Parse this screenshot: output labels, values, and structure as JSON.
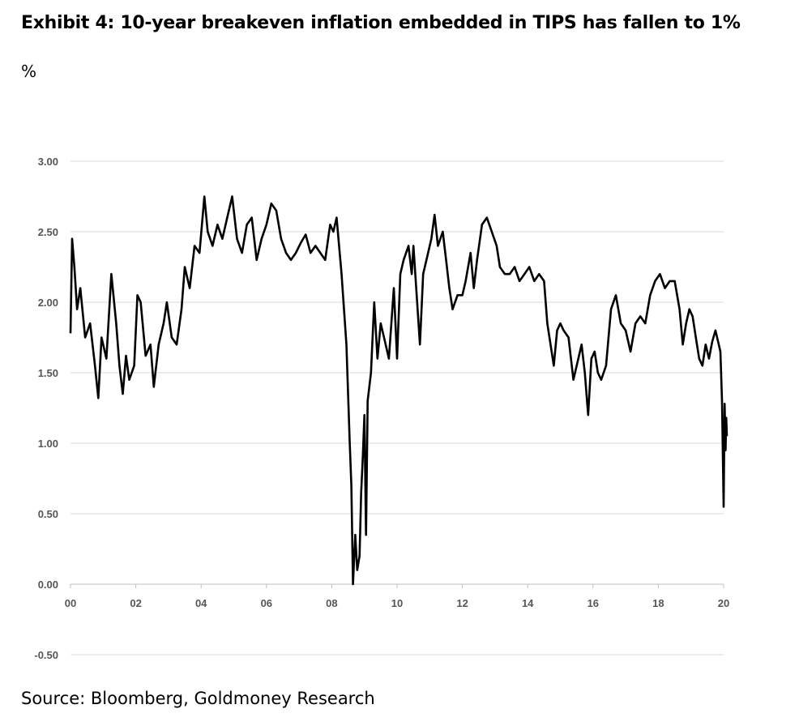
{
  "title": "Exhibit 4: 10-year breakeven inflation embedded in TIPS has fallen to 1%",
  "unit_label": "%",
  "source": "Source: Bloomberg, Goldmoney Research",
  "chart_data": {
    "type": "line",
    "title": "Exhibit 4: 10-year breakeven inflation embedded in TIPS has fallen to 1%",
    "ylabel": "%",
    "xlabel": "",
    "xlim": [
      2000,
      2020
    ],
    "ylim": [
      -0.5,
      3.0
    ],
    "grid": "horizontal",
    "legend": "none",
    "line_color": "#000000",
    "x_ticks": [
      {
        "value": 2000,
        "label": "00"
      },
      {
        "value": 2002,
        "label": "02"
      },
      {
        "value": 2004,
        "label": "04"
      },
      {
        "value": 2006,
        "label": "06"
      },
      {
        "value": 2008,
        "label": "08"
      },
      {
        "value": 2010,
        "label": "10"
      },
      {
        "value": 2012,
        "label": "12"
      },
      {
        "value": 2014,
        "label": "14"
      },
      {
        "value": 2016,
        "label": "16"
      },
      {
        "value": 2018,
        "label": "18"
      },
      {
        "value": 2020,
        "label": "20"
      }
    ],
    "y_ticks": [
      {
        "value": 3.0,
        "label": "3.00"
      },
      {
        "value": 2.5,
        "label": "2.50"
      },
      {
        "value": 2.0,
        "label": "2.00"
      },
      {
        "value": 1.5,
        "label": "1.50"
      },
      {
        "value": 1.0,
        "label": "1.00"
      },
      {
        "value": 0.5,
        "label": "0.50"
      },
      {
        "value": 0.0,
        "label": "0.00"
      },
      {
        "value": -0.5,
        "label": "-0.50"
      }
    ],
    "series": [
      {
        "x": [
          2000.0,
          2000.05,
          2000.12,
          2000.2,
          2000.3,
          2000.45,
          2000.6,
          2000.75,
          2000.85,
          2000.95,
          2001.1,
          2001.25,
          2001.4,
          2001.5,
          2001.6,
          2001.7,
          2001.8,
          2001.95,
          2002.05,
          2002.15,
          2002.3,
          2002.45,
          2002.55,
          2002.7,
          2002.85,
          2002.95,
          2003.1,
          2003.25,
          2003.4,
          2003.5,
          2003.65,
          2003.8,
          2003.95,
          2004.1,
          2004.2,
          2004.35,
          2004.5,
          2004.65,
          2004.8,
          2004.95,
          2005.1,
          2005.25,
          2005.4,
          2005.55,
          2005.7,
          2005.85,
          2006.0,
          2006.15,
          2006.3,
          2006.45,
          2006.6,
          2006.75,
          2006.9,
          2007.05,
          2007.2,
          2007.35,
          2007.5,
          2007.65,
          2007.8,
          2007.95,
          2008.05,
          2008.15,
          2008.3,
          2008.45,
          2008.55,
          2008.6,
          2008.65,
          2008.72,
          2008.78,
          2008.85,
          2008.9,
          2008.95,
          2009.0,
          2009.05,
          2009.1,
          2009.2,
          2009.3,
          2009.4,
          2009.5,
          2009.6,
          2009.75,
          2009.9,
          2010.0,
          2010.1,
          2010.2,
          2010.35,
          2010.45,
          2010.5,
          2010.6,
          2010.7,
          2010.8,
          2010.95,
          2011.05,
          2011.15,
          2011.25,
          2011.4,
          2011.5,
          2011.6,
          2011.7,
          2011.85,
          2012.0,
          2012.1,
          2012.25,
          2012.35,
          2012.45,
          2012.6,
          2012.75,
          2012.9,
          2013.05,
          2013.15,
          2013.3,
          2013.45,
          2013.6,
          2013.75,
          2013.9,
          2014.05,
          2014.2,
          2014.35,
          2014.5,
          2014.6,
          2014.7,
          2014.8,
          2014.9,
          2015.0,
          2015.1,
          2015.25,
          2015.4,
          2015.55,
          2015.65,
          2015.75,
          2015.85,
          2015.95,
          2016.05,
          2016.15,
          2016.25,
          2016.4,
          2016.55,
          2016.7,
          2016.85,
          2017.0,
          2017.15,
          2017.3,
          2017.45,
          2017.6,
          2017.75,
          2017.9,
          2018.05,
          2018.2,
          2018.35,
          2018.5,
          2018.65,
          2018.75,
          2018.85,
          2018.95,
          2019.05,
          2019.15,
          2019.25,
          2019.35,
          2019.45,
          2019.55,
          2019.65,
          2019.75,
          2019.85,
          2019.9,
          2019.95,
          2020.0,
          2020.03,
          2020.06,
          2020.08,
          2020.1
        ],
        "y": [
          1.78,
          2.45,
          2.25,
          1.95,
          2.1,
          1.75,
          1.85,
          1.55,
          1.32,
          1.75,
          1.6,
          2.2,
          1.85,
          1.55,
          1.35,
          1.62,
          1.45,
          1.55,
          2.05,
          2.0,
          1.62,
          1.7,
          1.4,
          1.7,
          1.85,
          2.0,
          1.75,
          1.7,
          1.95,
          2.25,
          2.1,
          2.4,
          2.35,
          2.75,
          2.5,
          2.4,
          2.55,
          2.45,
          2.6,
          2.75,
          2.45,
          2.35,
          2.55,
          2.6,
          2.3,
          2.45,
          2.55,
          2.7,
          2.65,
          2.45,
          2.35,
          2.3,
          2.35,
          2.42,
          2.48,
          2.35,
          2.4,
          2.35,
          2.3,
          2.55,
          2.5,
          2.6,
          2.2,
          1.7,
          1.0,
          0.7,
          0.0,
          0.35,
          0.1,
          0.2,
          0.65,
          0.9,
          1.2,
          0.35,
          1.3,
          1.5,
          2.0,
          1.6,
          1.85,
          1.75,
          1.6,
          2.1,
          1.6,
          2.2,
          2.3,
          2.4,
          2.2,
          2.4,
          2.05,
          1.7,
          2.2,
          2.35,
          2.45,
          2.62,
          2.4,
          2.5,
          2.3,
          2.1,
          1.95,
          2.05,
          2.05,
          2.15,
          2.35,
          2.1,
          2.3,
          2.55,
          2.6,
          2.5,
          2.4,
          2.25,
          2.2,
          2.2,
          2.25,
          2.15,
          2.2,
          2.25,
          2.15,
          2.2,
          2.15,
          1.85,
          1.7,
          1.55,
          1.8,
          1.85,
          1.8,
          1.75,
          1.45,
          1.6,
          1.7,
          1.5,
          1.2,
          1.6,
          1.65,
          1.5,
          1.45,
          1.55,
          1.95,
          2.05,
          1.85,
          1.8,
          1.65,
          1.85,
          1.9,
          1.85,
          2.05,
          2.15,
          2.2,
          2.1,
          2.15,
          2.15,
          1.95,
          1.7,
          1.85,
          1.95,
          1.9,
          1.75,
          1.6,
          1.55,
          1.7,
          1.6,
          1.72,
          1.8,
          1.7,
          1.65,
          1.3,
          0.55,
          1.28,
          0.95,
          1.18,
          1.05
        ]
      }
    ]
  }
}
